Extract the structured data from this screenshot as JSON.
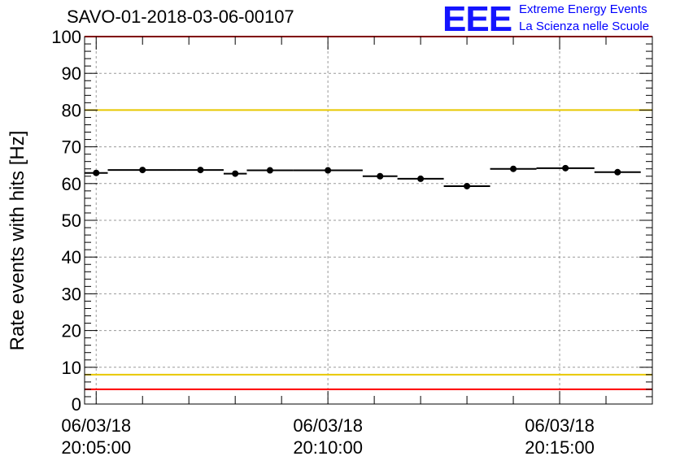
{
  "header": {
    "title": "SAVO-01-2018-03-06-00107",
    "logo_text": "EEE",
    "logo_line1": "Extreme Energy Events",
    "logo_line2": "La Scienza nelle Scuole"
  },
  "colors": {
    "logo": "#1414ff",
    "logo_text": "#0000ff",
    "limit_red": "#ff0000",
    "limit_yellow": "#e8c800",
    "grid": "#9a9a9a",
    "marker": "#000000"
  },
  "chart_data": {
    "type": "scatter",
    "title": "SAVO-01-2018-03-06-00107",
    "ylabel": "Rate events with hits [Hz]",
    "xlabel": "",
    "ylim": [
      0,
      100
    ],
    "yticks": [
      0,
      10,
      20,
      30,
      40,
      50,
      60,
      70,
      80,
      90,
      100
    ],
    "x_range": [
      "06/03/18 20:04:45",
      "06/03/18 20:17:00"
    ],
    "xticks": [
      {
        "x": "06/03/18 20:05:00",
        "date": "06/03/18",
        "time": "20:05:00"
      },
      {
        "x": "06/03/18 20:10:00",
        "date": "06/03/18",
        "time": "20:10:00"
      },
      {
        "x": "06/03/18 20:15:00",
        "date": "06/03/18",
        "time": "20:15:00"
      }
    ],
    "grid": true,
    "horizontal_lines": [
      {
        "y": 100,
        "color": "#ff0000"
      },
      {
        "y": 80,
        "color": "#e8c800"
      },
      {
        "y": 8,
        "color": "#e8c800"
      },
      {
        "y": 4,
        "color": "#ff0000"
      }
    ],
    "points": [
      {
        "start": "06/03/18 20:04:45",
        "end": "06/03/18 20:05:15",
        "y": 62.9
      },
      {
        "start": "06/03/18 20:05:15",
        "end": "06/03/18 20:06:45",
        "y": 63.7
      },
      {
        "start": "06/03/18 20:06:45",
        "end": "06/03/18 20:07:45",
        "y": 63.7
      },
      {
        "start": "06/03/18 20:07:45",
        "end": "06/03/18 20:08:15",
        "y": 62.7
      },
      {
        "start": "06/03/18 20:08:15",
        "end": "06/03/18 20:09:15",
        "y": 63.6
      },
      {
        "start": "06/03/18 20:09:15",
        "end": "06/03/18 20:10:45",
        "y": 63.6
      },
      {
        "start": "06/03/18 20:10:45",
        "end": "06/03/18 20:11:30",
        "y": 62.0
      },
      {
        "start": "06/03/18 20:11:30",
        "end": "06/03/18 20:12:30",
        "y": 61.3
      },
      {
        "start": "06/03/18 20:12:30",
        "end": "06/03/18 20:13:30",
        "y": 59.3
      },
      {
        "start": "06/03/18 20:13:30",
        "end": "06/03/18 20:14:30",
        "y": 64.0
      },
      {
        "start": "06/03/18 20:14:30",
        "end": "06/03/18 20:15:45",
        "y": 64.2
      },
      {
        "start": "06/03/18 20:15:45",
        "end": "06/03/18 20:16:45",
        "y": 63.1
      }
    ]
  }
}
